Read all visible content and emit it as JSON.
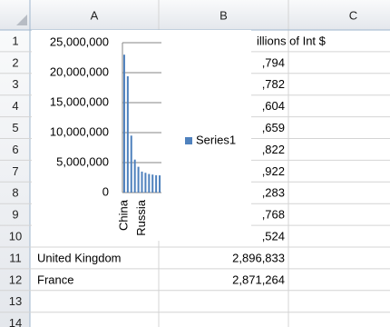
{
  "spreadsheet": {
    "columns": [
      "A",
      "B",
      "C"
    ],
    "row_headers": [
      1,
      2,
      3,
      4,
      5,
      6,
      7,
      8,
      9,
      10,
      11,
      12,
      13,
      14
    ],
    "cells": {
      "B1": "illions of Int $",
      "B2": ",794",
      "B3": ",782",
      "B4": ",604",
      "B5": ",659",
      "B6": ",822",
      "B7": ",922",
      "B8": ",283",
      "B9": ",768",
      "B10": ",524",
      "A11": "United Kingdom",
      "B11": "2,896,833",
      "A12": "France",
      "B12": "2,871,264"
    }
  },
  "chart_data": {
    "type": "bar",
    "categories": [
      "China",
      null,
      null,
      null,
      null,
      "Russia",
      null,
      null,
      null,
      null,
      null
    ],
    "series": [
      {
        "name": "Series1",
        "color": "#4f81bd",
        "values": [
          23000000,
          19400000,
          9500000,
          5500000,
          4300000,
          3500000,
          3300000,
          3100000,
          3000000,
          2896833,
          2871264
        ]
      }
    ],
    "ylim": [
      0,
      25000000
    ],
    "yticks": [
      {
        "value": 0,
        "label": "0"
      },
      {
        "value": 5000000,
        "label": "5,000,000"
      },
      {
        "value": 10000000,
        "label": "10,000,000"
      },
      {
        "value": 15000000,
        "label": "15,000,000"
      },
      {
        "value": 20000000,
        "label": "20,000,000"
      },
      {
        "value": 25000000,
        "label": "25,000,000"
      }
    ],
    "grid": true,
    "legend": "right"
  }
}
